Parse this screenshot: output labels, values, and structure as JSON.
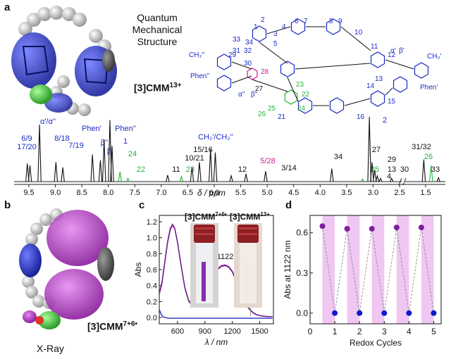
{
  "figure": {
    "panel_a": {
      "letter": "a",
      "structure_title_line1": "Quantum",
      "structure_title_line2": "Mechanical",
      "structure_title_line3": "Structure",
      "compound_label": "[3]CMM",
      "compound_charge": "13+",
      "structure_labels": {
        "blue": [
          "1",
          "2",
          "3",
          "4",
          "5",
          "6",
          "7",
          "8",
          "9",
          "10",
          "11",
          "12",
          "13",
          "14",
          "15",
          "16",
          "17",
          "18",
          "19",
          "20",
          "21",
          "29",
          "30",
          "31",
          "32",
          "33",
          "34",
          "α'",
          "β'",
          "α''",
          "β''",
          "CH₂'",
          "CH₂''",
          "Phen'",
          "Phen''"
        ],
        "green": [
          "22",
          "23",
          "24",
          "25",
          "26"
        ],
        "magenta": [
          "28"
        ],
        "black": [
          "27"
        ]
      }
    },
    "panel_b": {
      "letter": "b",
      "compound_label": "[3]CMM",
      "compound_charge": "7+6•",
      "caption": "X-Ray"
    },
    "panel_c": {
      "letter": "c",
      "inset_left_label": "[3]CMM",
      "inset_left_charge": "7+6•",
      "inset_right_label": "[3]CMM",
      "inset_right_charge": "13+"
    },
    "panel_d": {
      "letter": "d"
    }
  },
  "chart_data": [
    {
      "type": "line",
      "title": "",
      "xlabel": "δ / ppm",
      "ylabel": "",
      "x_reversed": true,
      "xlim": [
        9.7,
        1.3
      ],
      "x_ticks": [
        9.5,
        9.0,
        8.5,
        8.0,
        7.5,
        7.0,
        6.5,
        6.0,
        5.5,
        5.0,
        4.5,
        4.0,
        3.5,
        3.0,
        2.5,
        1.5
      ],
      "x_tick_labels": [
        "9.5",
        "9.0",
        "8.5",
        "8.0",
        "7.5",
        "7.0",
        "6.5",
        "6.0",
        "5.5",
        "5.0",
        "4.5",
        "4.0",
        "3.5",
        "3.0",
        "2.5",
        "1.5"
      ],
      "axis_break_between": [
        2.5,
        1.5
      ],
      "peaks": [
        {
          "ppm": 9.53,
          "height": 0.28,
          "label": "6/9"
        },
        {
          "ppm": 9.48,
          "height": 0.25,
          "label": "17/20"
        },
        {
          "ppm": 9.3,
          "height": 0.88,
          "label": "α'/α''"
        },
        {
          "ppm": 8.99,
          "height": 0.3,
          "label": "8/18"
        },
        {
          "ppm": 8.86,
          "height": 0.22,
          "label": "7/19"
        },
        {
          "ppm": 8.3,
          "height": 0.42,
          "label": "β''"
        },
        {
          "ppm": 8.15,
          "height": 0.33,
          "label": "β'"
        },
        {
          "ppm": 8.08,
          "height": 0.65,
          "label": "Phen'"
        },
        {
          "ppm": 7.97,
          "height": 0.95,
          "label": "Phen''"
        },
        {
          "ppm": 7.93,
          "height": 0.55,
          "label": "1"
        },
        {
          "ppm": 7.78,
          "height": 0.15,
          "label": "24"
        },
        {
          "ppm": 7.63,
          "height": 0.05,
          "label": "22"
        },
        {
          "ppm": 6.88,
          "height": 0.1,
          "label": "11"
        },
        {
          "ppm": 6.62,
          "height": 0.08,
          "label": "23"
        },
        {
          "ppm": 6.42,
          "height": 0.22,
          "label": "10/21"
        },
        {
          "ppm": 6.28,
          "height": 0.3,
          "label": "15/16"
        },
        {
          "ppm": 6.07,
          "height": 0.5,
          "label": "CH₂'/CH₂''"
        },
        {
          "ppm": 5.98,
          "height": 0.45,
          "label": ""
        },
        {
          "ppm": 5.68,
          "height": 0.09,
          "label": "12"
        },
        {
          "ppm": 5.4,
          "height": 0.12,
          "label": "5/28"
        },
        {
          "ppm": 5.03,
          "height": 0.16,
          "label": "3/14"
        },
        {
          "ppm": 3.78,
          "height": 0.2,
          "label": "34"
        },
        {
          "ppm": 3.2,
          "height": 0.04,
          "label": "25"
        },
        {
          "ppm": 3.07,
          "height": 1.0,
          "label": "2"
        },
        {
          "ppm": 3.02,
          "height": 0.3,
          "label": "27"
        },
        {
          "ppm": 2.97,
          "height": 0.18,
          "label": "29"
        },
        {
          "ppm": 2.92,
          "height": 0.09,
          "label": "13"
        },
        {
          "ppm": 2.86,
          "height": 0.05,
          "label": "4"
        },
        {
          "ppm": 2.65,
          "height": 0.05,
          "label": "30"
        },
        {
          "ppm": 1.52,
          "height": 0.34,
          "label": "31/32"
        },
        {
          "ppm": 1.44,
          "height": 0.25,
          "label": "26"
        },
        {
          "ppm": 1.36,
          "height": 0.06,
          "label": "33"
        }
      ]
    },
    {
      "type": "line",
      "title": "",
      "xlabel": "λ / nm",
      "ylabel": "Abs",
      "xlim": [
        400,
        1650
      ],
      "ylim": [
        -0.08,
        1.28
      ],
      "x_ticks": [
        600,
        900,
        1200,
        1500
      ],
      "y_ticks": [
        0.0,
        0.2,
        0.4,
        0.6,
        0.8,
        1.0,
        1.2
      ],
      "y_tick_labels": [
        "0.0",
        "0.2",
        "0.4",
        "0.6",
        "0.8",
        "1.0",
        "1.2"
      ],
      "annotation": "1122",
      "series": [
        {
          "name": "",
          "color": "#9b2fae",
          "x": [
            400,
            430,
            460,
            490,
            520,
            545,
            570,
            600,
            640,
            680,
            720,
            760,
            800,
            840,
            880,
            920,
            960,
            1000,
            1040,
            1080,
            1122,
            1160,
            1200,
            1240,
            1280,
            1320,
            1360,
            1400,
            1440,
            1480,
            1520,
            1560,
            1600,
            1640
          ],
          "y": [
            0.3,
            0.45,
            0.7,
            0.95,
            1.12,
            1.17,
            1.12,
            0.95,
            0.65,
            0.38,
            0.22,
            0.15,
            0.14,
            0.16,
            0.22,
            0.31,
            0.42,
            0.53,
            0.61,
            0.65,
            0.66,
            0.64,
            0.58,
            0.47,
            0.35,
            0.24,
            0.15,
            0.09,
            0.05,
            0.03,
            0.02,
            0.015,
            0.01,
            0.01
          ]
        },
        {
          "name": "",
          "color": "#6e1f8a",
          "x": [
            400,
            430,
            460,
            490,
            520,
            545,
            570,
            600,
            640,
            680,
            720,
            760,
            800,
            840,
            880,
            920,
            960,
            1000,
            1040,
            1080,
            1122,
            1160,
            1200,
            1240,
            1280,
            1320,
            1360,
            1400,
            1440,
            1480,
            1520,
            1560,
            1600,
            1640
          ],
          "y": [
            0.29,
            0.43,
            0.68,
            0.93,
            1.1,
            1.16,
            1.11,
            0.94,
            0.64,
            0.37,
            0.21,
            0.145,
            0.135,
            0.155,
            0.21,
            0.3,
            0.41,
            0.52,
            0.6,
            0.64,
            0.65,
            0.63,
            0.57,
            0.46,
            0.34,
            0.23,
            0.14,
            0.085,
            0.045,
            0.028,
            0.018,
            0.012,
            0.01,
            0.01
          ]
        },
        {
          "name": "",
          "color": "#1f2fbf",
          "x": [
            400,
            420,
            440,
            460,
            480,
            500,
            550,
            600,
            700,
            800,
            900,
            1000,
            1100,
            1200,
            1300,
            1400,
            1500,
            1600,
            1640
          ],
          "y": [
            0.1,
            0.04,
            0.01,
            0.0,
            -0.005,
            -0.01,
            -0.01,
            -0.01,
            -0.01,
            -0.01,
            -0.01,
            -0.01,
            -0.01,
            -0.01,
            -0.01,
            -0.01,
            -0.01,
            -0.01,
            -0.01
          ]
        }
      ]
    },
    {
      "type": "scatter",
      "title": "",
      "xlabel": "Redox Cycles",
      "ylabel": "Abs at 1122 nm",
      "xlim": [
        0,
        5.3
      ],
      "ylim": [
        -0.08,
        0.73
      ],
      "x_ticks": [
        0,
        1,
        2,
        3,
        4,
        5
      ],
      "y_ticks": [
        0.0,
        0.3,
        0.6
      ],
      "y_tick_labels": [
        "0.0",
        "0.3",
        "0.6"
      ],
      "shaded_bands": [
        [
          0.5,
          1.0
        ],
        [
          1.5,
          2.0
        ],
        [
          2.5,
          3.0
        ],
        [
          3.5,
          4.0
        ],
        [
          4.5,
          5.0
        ]
      ],
      "series": [
        {
          "name": "",
          "color": "#7d1f9f",
          "x": [
            0.5,
            1.5,
            2.5,
            3.5,
            4.5
          ],
          "y": [
            0.65,
            0.63,
            0.63,
            0.64,
            0.64
          ]
        },
        {
          "name": "",
          "color": "#1018c8",
          "x": [
            1.0,
            2.0,
            3.0,
            4.0,
            5.0
          ],
          "y": [
            0.0,
            0.0,
            0.0,
            0.0,
            0.0
          ]
        }
      ],
      "connector_sequence_x": [
        0.5,
        1.0,
        1.5,
        2.0,
        2.5,
        3.0,
        3.5,
        4.0,
        4.5,
        5.0
      ],
      "connector_sequence_y": [
        0.65,
        0.0,
        0.63,
        0.0,
        0.63,
        0.0,
        0.64,
        0.0,
        0.64,
        0.0
      ]
    }
  ]
}
